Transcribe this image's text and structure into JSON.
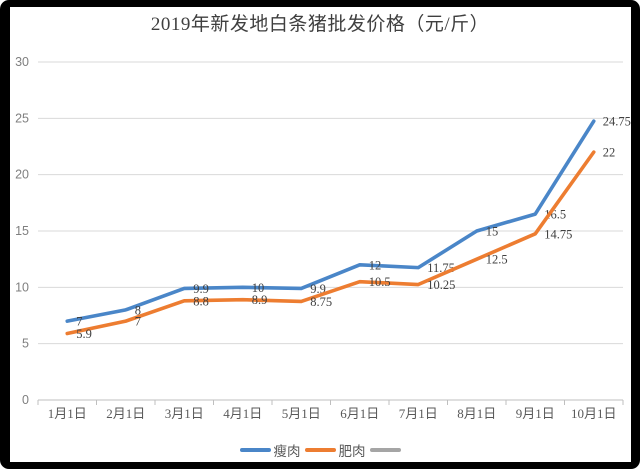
{
  "chart_data": {
    "type": "line",
    "title": "2019年新发地白条猪批发价格（元/斤）",
    "categories": [
      "1月1日",
      "2月1日",
      "3月1日",
      "4月1日",
      "5月1日",
      "6月1日",
      "7月1日",
      "8月1日",
      "9月1日",
      "10月1日"
    ],
    "series": [
      {
        "name": "瘦肉",
        "color": "#4a86c8",
        "values": [
          7,
          8,
          9.9,
          10,
          9.9,
          12,
          11.75,
          15,
          16.5,
          24.75
        ],
        "labels": [
          "7",
          "8",
          "9.9",
          "10",
          "9.9",
          "12",
          "11.75",
          "15",
          "16.5",
          "24.75"
        ]
      },
      {
        "name": "肥肉",
        "color": "#ed7d31",
        "values": [
          5.9,
          7,
          8.8,
          8.9,
          8.75,
          10.5,
          10.25,
          12.5,
          14.75,
          22
        ],
        "labels": [
          "5.9",
          "7",
          "8.8",
          "8.9",
          "8.75",
          "10.5",
          "10.25",
          "12.5",
          "14.75",
          "22"
        ]
      }
    ],
    "extra_legend_entry": {
      "label": "",
      "color": "#a5a5a5"
    },
    "ylim": [
      0,
      30
    ],
    "ytick_step": 5,
    "yticks": [
      "0",
      "5",
      "10",
      "15",
      "20",
      "25",
      "30"
    ],
    "xlabel": "",
    "ylabel": "",
    "grid": true,
    "legend_position": "bottom",
    "colors": {
      "gridline": "#d9d9d9",
      "axis_line": "#bfbfbf",
      "axis_text": "#7f7f7f",
      "category_text": "#595959",
      "data_label_text": "#404040",
      "title_text": "#3f3f3f",
      "frame": "#000000",
      "background": "#ffffff"
    }
  }
}
